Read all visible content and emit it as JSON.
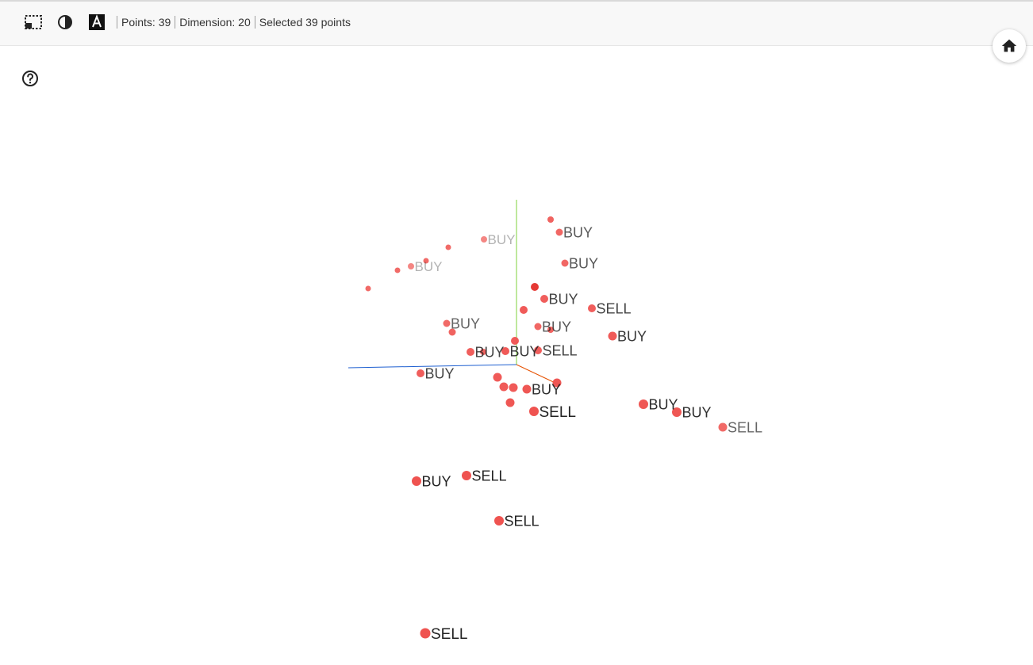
{
  "toolbar": {
    "select_mode_icon": "select-rectangle-icon",
    "night_mode_icon": "night-mode-icon",
    "labels_toggle_icon": "labels-toggle-icon",
    "points_label": "Points: 39",
    "dimension_label": "Dimension: 20",
    "selected_label": "Selected 39 points"
  },
  "controls": {
    "home_icon": "home-icon",
    "help_icon": "help-icon"
  },
  "colors": {
    "point": "#ef5350",
    "point_dark": "#e53935",
    "axis_x": "#e65100",
    "axis_y": "#7cd13b",
    "axis_z": "#1e5fd0",
    "label": "#222222"
  },
  "points": [
    {
      "label": "BUY"
    },
    {
      "label": ""
    },
    {
      "label": "BUY"
    },
    {
      "label": "BUY"
    },
    {
      "label": "BUY"
    },
    {
      "label": ""
    },
    {
      "label": ""
    },
    {
      "label": ""
    },
    {
      "label": "BUY"
    },
    {
      "label": "BUY"
    },
    {
      "label": ""
    },
    {
      "label": "SELL"
    },
    {
      "label": ""
    },
    {
      "label": "BUY"
    },
    {
      "label": "BUY"
    },
    {
      "label": ""
    },
    {
      "label": "BUY"
    },
    {
      "label": ""
    },
    {
      "label": "BUY"
    },
    {
      "label": "SELL"
    },
    {
      "label": "BUY"
    },
    {
      "label": "BUY"
    },
    {
      "label": ""
    },
    {
      "label": ""
    },
    {
      "label": ""
    },
    {
      "label": ""
    },
    {
      "label": "BUY"
    },
    {
      "label": "SELL"
    },
    {
      "label": ""
    },
    {
      "label": "BUY"
    },
    {
      "label": "BUY"
    },
    {
      "label": "SELL"
    },
    {
      "label": "BUY"
    },
    {
      "label": "SELL"
    },
    {
      "label": "SELL"
    },
    {
      "label": "SELL"
    },
    {
      "label": ""
    },
    {
      "label": ""
    },
    {
      "label": ""
    }
  ]
}
